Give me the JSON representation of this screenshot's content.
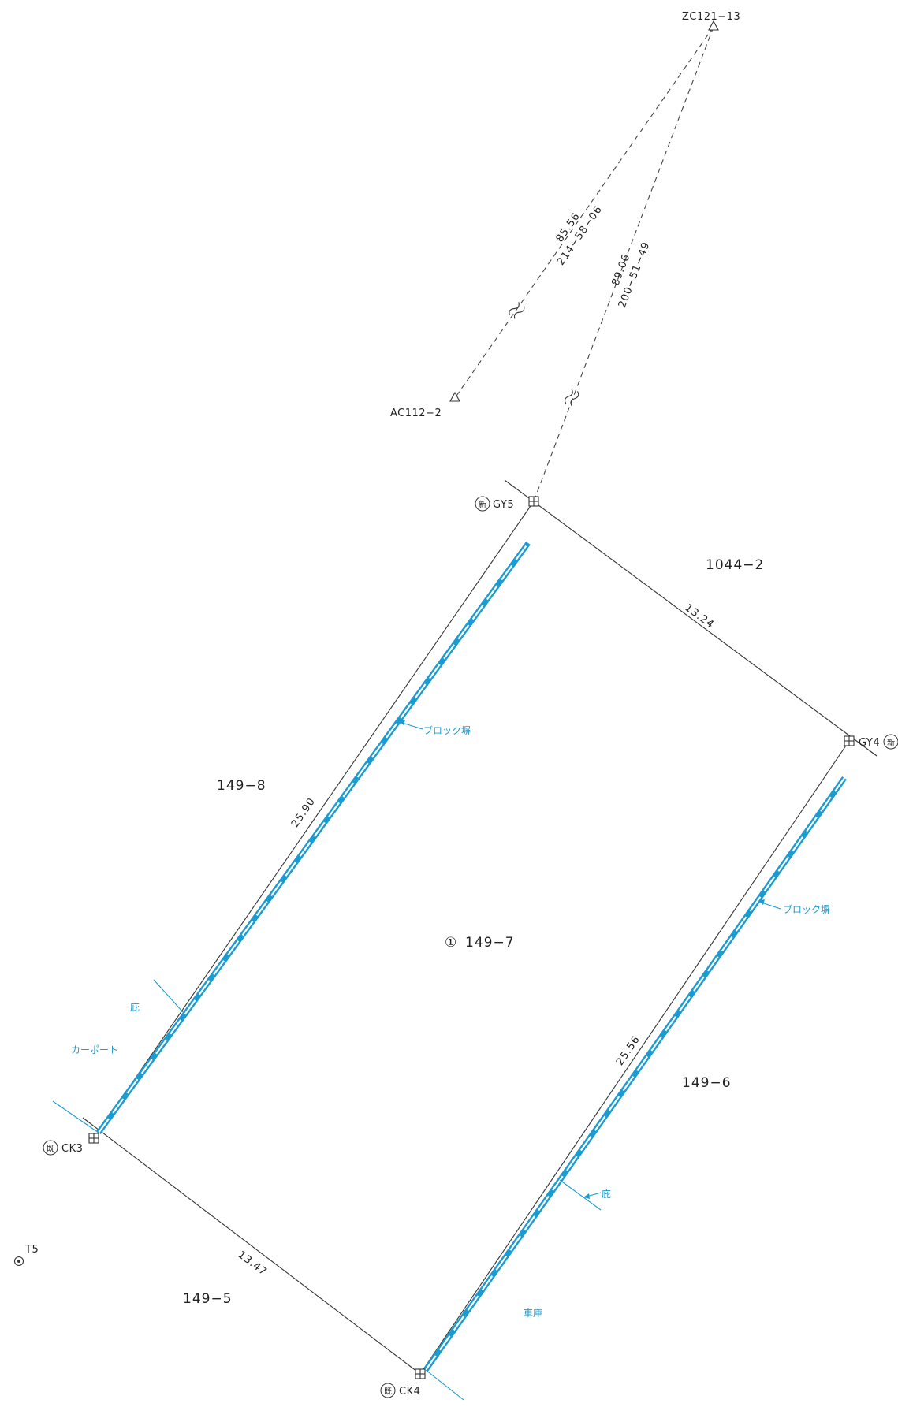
{
  "control_points": {
    "zc121_13": "ZC121−13",
    "ac112_2": "AC112−2",
    "t5": "T5"
  },
  "traverse": {
    "leg1_distance": "85.56",
    "leg1_bearing": "214−58−06",
    "leg2_distance": "89.06",
    "leg2_bearing": "200−51−49"
  },
  "boundary_points": {
    "gy5": "GY5",
    "gy4": "GY4",
    "ck3": "CK3",
    "ck4": "CK4",
    "new_mark": "新",
    "existing_mark": "既"
  },
  "sides": {
    "north_east": "13.24",
    "north_west": "25.90",
    "south_east": "25.56",
    "south_west": "13.47"
  },
  "parcels": {
    "subject_number": "①",
    "subject": "149−7",
    "north": "1044−2",
    "west": "149−8",
    "east": "149−6",
    "south": "149−5"
  },
  "notes": {
    "block_wall_west": "ブロック塀",
    "block_wall_east": "ブロック塀",
    "eaves_west": "庇",
    "eaves_east": "庇",
    "carport": "カーポート",
    "garage": "車庫"
  },
  "colors": {
    "wall": "#1a9bd1",
    "line": "#333333"
  }
}
